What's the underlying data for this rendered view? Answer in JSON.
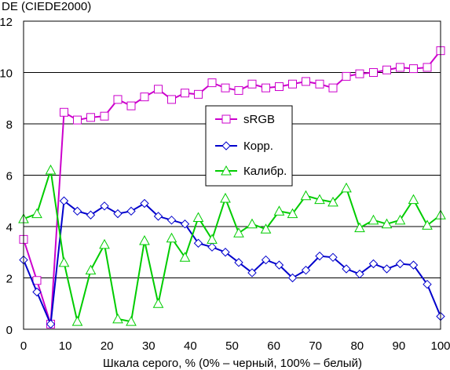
{
  "chart_data": {
    "type": "line",
    "title": "",
    "ylabel": "DE (CIEDE2000)",
    "xlabel": "Шкала серого, % (0% – черный, 100% – белый)",
    "xlim": [
      0,
      100
    ],
    "ylim": [
      0,
      12
    ],
    "xticks": [
      0,
      10,
      20,
      30,
      40,
      50,
      60,
      70,
      80,
      90,
      100
    ],
    "yticks": [
      0,
      2,
      4,
      6,
      8,
      10,
      12
    ],
    "grid": "horizontal",
    "legend_position": "center",
    "x": [
      0,
      3.2,
      6.5,
      9.7,
      12.9,
      16.1,
      19.4,
      22.6,
      25.8,
      29.0,
      32.3,
      35.5,
      38.7,
      41.9,
      45.2,
      48.4,
      51.6,
      54.8,
      58.1,
      61.3,
      64.5,
      67.7,
      71.0,
      74.2,
      77.4,
      80.6,
      83.9,
      87.1,
      90.3,
      93.5,
      96.8,
      100
    ],
    "series": [
      {
        "name": "sRGB",
        "color": "#cc00cc",
        "marker": "square",
        "values": [
          3.5,
          1.9,
          0.2,
          8.45,
          8.15,
          8.25,
          8.3,
          8.95,
          8.7,
          9.05,
          9.35,
          8.95,
          9.2,
          9.15,
          9.6,
          9.4,
          9.3,
          9.55,
          9.4,
          9.45,
          9.55,
          9.65,
          9.55,
          9.4,
          9.85,
          9.95,
          10.0,
          10.1,
          10.2,
          10.15,
          10.2,
          10.85
        ]
      },
      {
        "name": "Корр.",
        "color": "#0000cc",
        "marker": "diamond",
        "values": [
          2.7,
          1.45,
          0.2,
          5.0,
          4.6,
          4.45,
          4.8,
          4.5,
          4.6,
          4.9,
          4.4,
          4.25,
          4.1,
          3.35,
          3.2,
          3.0,
          2.6,
          2.2,
          2.7,
          2.5,
          2.0,
          2.3,
          2.85,
          2.8,
          2.35,
          2.15,
          2.55,
          2.35,
          2.55,
          2.5,
          1.75,
          0.5
        ]
      },
      {
        "name": "Калибр.",
        "color": "#00cc00",
        "marker": "triangle",
        "values": [
          4.3,
          4.5,
          6.2,
          2.6,
          0.3,
          2.3,
          3.3,
          0.4,
          0.3,
          3.45,
          1.0,
          3.55,
          2.8,
          4.35,
          3.5,
          5.1,
          3.75,
          4.1,
          3.9,
          4.6,
          4.5,
          5.2,
          5.05,
          4.95,
          5.5,
          3.95,
          4.25,
          4.1,
          4.25,
          5.05,
          4.05,
          4.45
        ]
      }
    ]
  }
}
